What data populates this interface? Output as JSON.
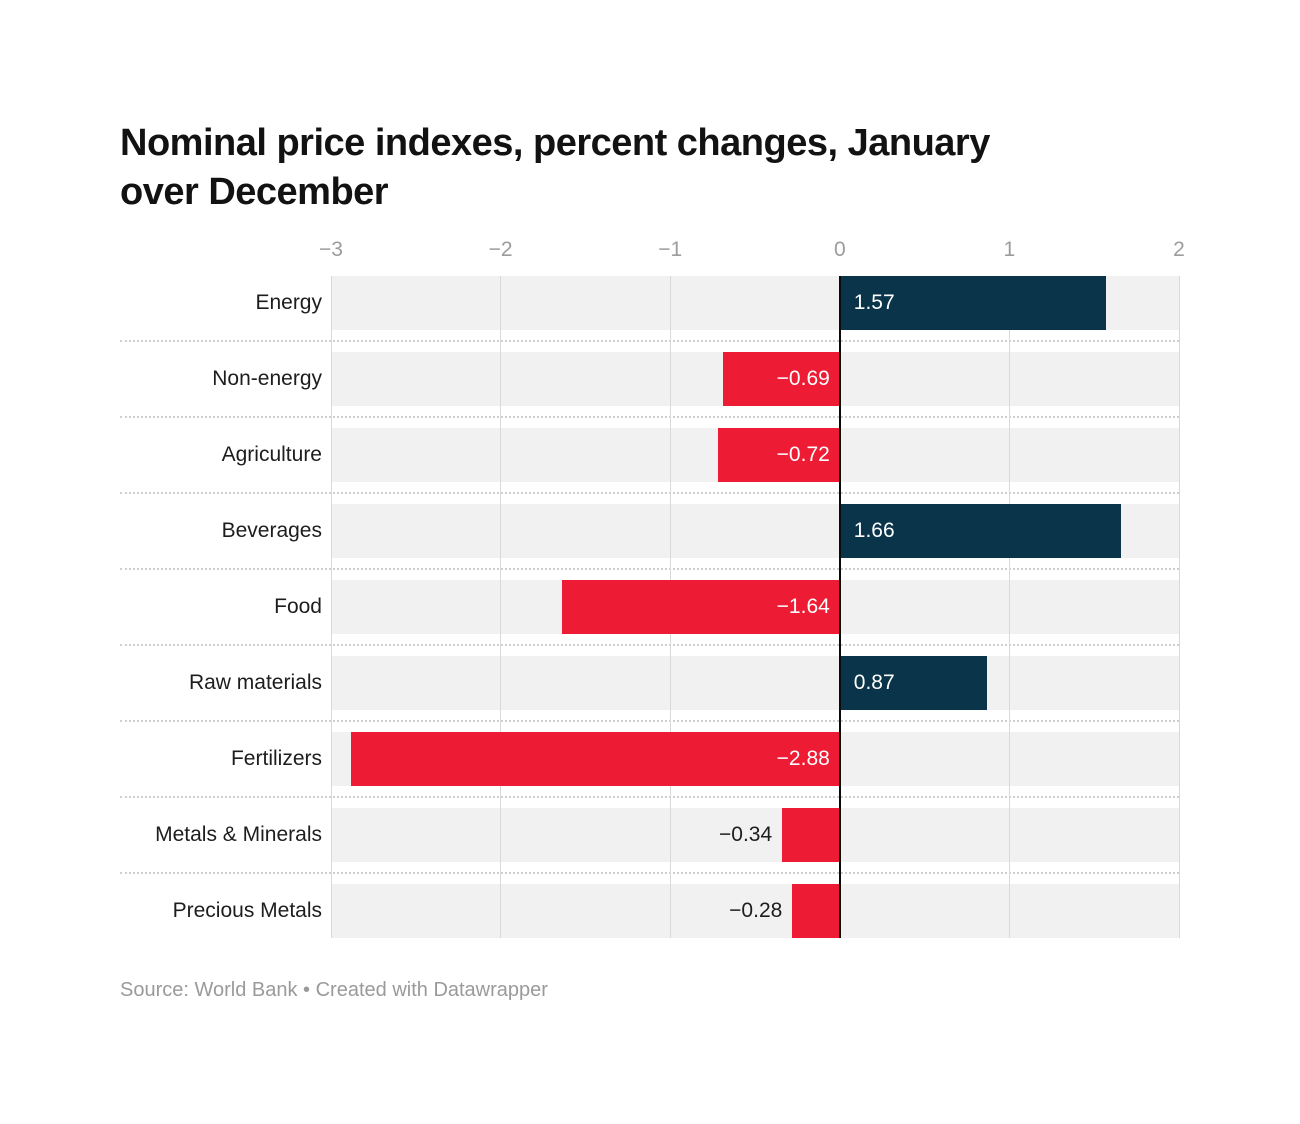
{
  "title": {
    "lines": [
      "Nominal price indexes, percent changes, January",
      "over December"
    ],
    "full": "Nominal price indexes, percent changes, January over December"
  },
  "footer": {
    "text": "Source: World Bank • Created with Datawrapper"
  },
  "colors": {
    "positive_bar": "#0a3449",
    "negative_bar": "#ed1c34",
    "row_band": "#f1f1f1",
    "gridline": "#d9d9d9",
    "zero_line": "#0a0a0a",
    "tick_label": "#9c9c9c",
    "category_label": "#1d1d1d",
    "value_label_inside": "#ffffff",
    "value_label_outside": "#1d1d1d"
  },
  "chart_data": {
    "type": "bar",
    "orientation": "horizontal",
    "title": "Nominal price indexes, percent changes, January over December",
    "categories": [
      "Energy",
      "Non-energy",
      "Agriculture",
      "Beverages",
      "Food",
      "Raw materials",
      "Fertilizers",
      "Metals & Minerals",
      "Precious Metals"
    ],
    "values": [
      1.57,
      -0.69,
      -0.72,
      1.66,
      -1.64,
      0.87,
      -2.88,
      -0.34,
      -0.28
    ],
    "value_labels": [
      "1.57",
      "−0.69",
      "−0.72",
      "1.66",
      "−1.64",
      "0.87",
      "−2.88",
      "−0.34",
      "−0.28"
    ],
    "xlim": [
      -3,
      2
    ],
    "x_ticks": [
      -3,
      -2,
      -1,
      0,
      1,
      2
    ],
    "x_tick_labels": [
      "−3",
      "−2",
      "−1",
      "0",
      "1",
      "2"
    ],
    "grid": true,
    "legend": false,
    "xlabel": "",
    "ylabel": "",
    "source": "Source: World Bank • Created with Datawrapper"
  }
}
